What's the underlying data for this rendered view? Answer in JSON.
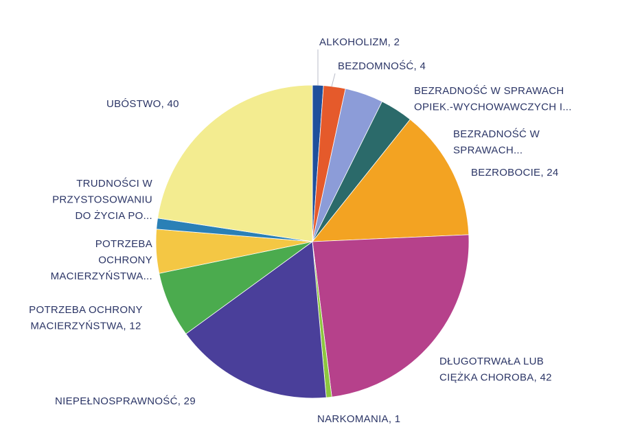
{
  "chart_data": {
    "type": "pie",
    "categories": [
      [
        "ALKOHOLIZM, 2"
      ],
      [
        "BEZDOMNOŚĆ, 4"
      ],
      [
        "BEZRADNOŚĆ W SPRAWACH",
        "OPIEK.-WYCHOWAWCZYCH I..."
      ],
      [
        "BEZRADNOŚĆ W",
        "SPRAWACH..."
      ],
      [
        "BEZROBOCIE, 24"
      ],
      [
        "DŁUGOTRWAŁA LUB",
        "CIĘŻKA CHOROBA, 42"
      ],
      [
        "NARKOMANIA, 1"
      ],
      [
        "NIEPEŁNOSPRAWNOŚĆ, 29"
      ],
      [
        "POTRZEBA OCHRONY",
        "MACIERZYŃSTWA, 12"
      ],
      [
        "POTRZEBA",
        "OCHRONY",
        "MACIERZYŃSTWA..."
      ],
      [
        "TRUDNOŚCI W",
        "PRZYSTOSOWANIU",
        "DO ŻYCIA PO..."
      ],
      [
        "UBÓSTWO, 40"
      ]
    ],
    "values": [
      2,
      4,
      7,
      6,
      24,
      42,
      1,
      29,
      12,
      8,
      2,
      40
    ],
    "colors": [
      "#1f4f9c",
      "#e55a2b",
      "#8c9cd8",
      "#2b6a6a",
      "#f3a322",
      "#b6418b",
      "#8dc63f",
      "#4a3f9a",
      "#4bab4e",
      "#f4c744",
      "#2a80b6",
      "#f3ec90"
    ]
  }
}
